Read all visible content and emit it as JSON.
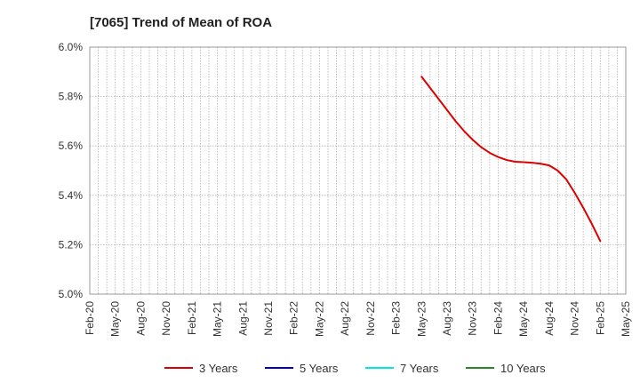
{
  "chart_data": {
    "type": "line",
    "title": "[7065]  Trend of Mean of ROA",
    "xlabel": "",
    "ylabel": "",
    "ylim": [
      5.0,
      6.0
    ],
    "yticks": [
      "5.0%",
      "5.2%",
      "5.4%",
      "5.6%",
      "5.8%",
      "6.0%"
    ],
    "x_ticks": [
      "Feb-20",
      "May-20",
      "Aug-20",
      "Nov-20",
      "Feb-21",
      "May-21",
      "Aug-21",
      "Nov-21",
      "Feb-22",
      "May-22",
      "Aug-22",
      "Nov-22",
      "Feb-23",
      "May-23",
      "Aug-23",
      "Nov-23",
      "Feb-24",
      "May-24",
      "Aug-24",
      "Nov-24",
      "Feb-25",
      "May-25"
    ],
    "grid": true,
    "legend_position": "bottom",
    "series": [
      {
        "name": "3 Years",
        "color": "#dd0000",
        "x": [
          "May-23",
          "Jun-23",
          "Jul-23",
          "Aug-23",
          "Sep-23",
          "Oct-23",
          "Nov-23",
          "Dec-23",
          "Jan-24",
          "Feb-24",
          "Mar-24",
          "Apr-24",
          "May-24",
          "Jun-24",
          "Jul-24",
          "Aug-24",
          "Sep-24",
          "Oct-24",
          "Nov-24",
          "Dec-24",
          "Jan-25",
          "Feb-25"
        ],
        "values": [
          5.88,
          5.835,
          5.79,
          5.745,
          5.7,
          5.66,
          5.625,
          5.595,
          5.572,
          5.555,
          5.543,
          5.536,
          5.534,
          5.532,
          5.528,
          5.521,
          5.5,
          5.465,
          5.41,
          5.35,
          5.285,
          5.215
        ]
      },
      {
        "name": "5 Years",
        "color": "#0000cc",
        "x": [],
        "values": []
      },
      {
        "name": "7 Years",
        "color": "#00e5e5",
        "x": [],
        "values": []
      },
      {
        "name": "10 Years",
        "color": "#228b22",
        "x": [],
        "values": []
      }
    ]
  }
}
